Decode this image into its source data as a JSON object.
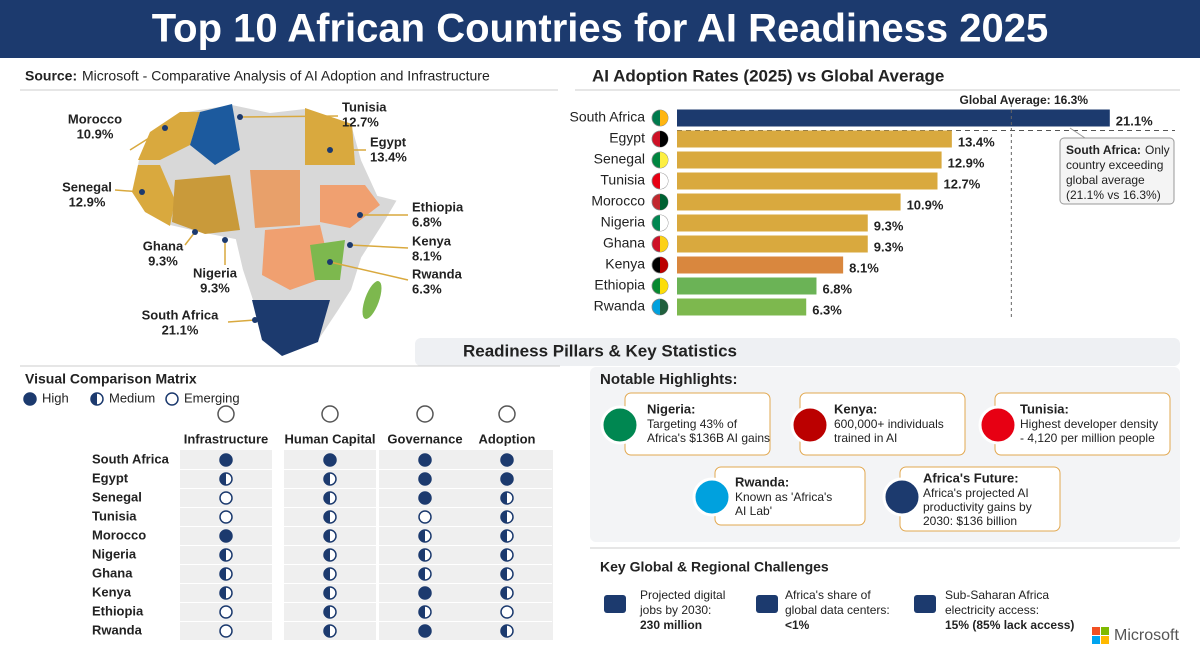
{
  "header": {
    "title": "Top 10 African Countries for AI Readiness 2025"
  },
  "source": {
    "label": "Source:",
    "text": "Microsoft - Comparative Analysis of AI Adoption and Infrastructure"
  },
  "map": {
    "labels": [
      {
        "name": "Morocco",
        "value": "10.9%"
      },
      {
        "name": "Tunisia",
        "value": "12.7%"
      },
      {
        "name": "Egypt",
        "value": "13.4%"
      },
      {
        "name": "Senegal",
        "value": "12.9%"
      },
      {
        "name": "Ethiopia",
        "value": "6.8%"
      },
      {
        "name": "Ghana",
        "value": "9.3%"
      },
      {
        "name": "Kenya",
        "value": "8.1%"
      },
      {
        "name": "Nigeria",
        "value": "9.3%"
      },
      {
        "name": "Rwanda",
        "value": "6.3%"
      },
      {
        "name": "South Africa",
        "value": "21.1%"
      }
    ]
  },
  "chart_data": {
    "type": "bar",
    "orientation": "horizontal",
    "title": "AI Adoption Rates (2025) vs Global Average",
    "categories": [
      "South Africa",
      "Egypt",
      "Senegal",
      "Tunisia",
      "Morocco",
      "Nigeria",
      "Ghana",
      "Kenya",
      "Ethiopia",
      "Rwanda"
    ],
    "values": [
      21.1,
      13.4,
      12.9,
      12.7,
      10.9,
      9.3,
      9.3,
      8.1,
      6.8,
      6.3
    ],
    "value_labels": [
      "21.1%",
      "13.4%",
      "12.9%",
      "12.7%",
      "10.9%",
      "9.3%",
      "9.3%",
      "8.1%",
      "6.8%",
      "6.3%"
    ],
    "colors": [
      "#1c3a6e",
      "#d9a93e",
      "#d9a93e",
      "#d9a93e",
      "#d9a93e",
      "#d9a93e",
      "#d9a93e",
      "#d9873e",
      "#6bb356",
      "#7db84e"
    ],
    "xlim": [
      0,
      21.5
    ],
    "reference_line": {
      "value": 16.3,
      "label": "Global Average: 16.3%"
    },
    "annotation": {
      "title": "South Africa:",
      "lines": [
        "Only",
        "country exceeding",
        "global average",
        "(21.1% vs 16.3%)"
      ]
    }
  },
  "pillars": {
    "title": "Readiness Pillars & Key Statistics"
  },
  "matrix": {
    "title": "Visual Comparison Matrix",
    "legend": [
      "High",
      "Medium",
      "Emerging"
    ],
    "columns": [
      "Infrastructure",
      "Human Capital",
      "Governance",
      "Adoption"
    ],
    "rows": [
      {
        "country": "South Africa",
        "ratings": [
          "High",
          "High",
          "High",
          "High"
        ]
      },
      {
        "country": "Egypt",
        "ratings": [
          "Medium",
          "Medium",
          "High",
          "High"
        ]
      },
      {
        "country": "Senegal",
        "ratings": [
          "Emerging",
          "Medium",
          "High",
          "Medium"
        ]
      },
      {
        "country": "Tunisia",
        "ratings": [
          "Emerging",
          "Medium",
          "Emerging",
          "Medium"
        ]
      },
      {
        "country": "Morocco",
        "ratings": [
          "High",
          "Medium",
          "Medium",
          "Medium"
        ]
      },
      {
        "country": "Nigeria",
        "ratings": [
          "Medium",
          "Medium",
          "Medium",
          "Medium"
        ]
      },
      {
        "country": "Ghana",
        "ratings": [
          "Medium",
          "Medium",
          "Medium",
          "Medium"
        ]
      },
      {
        "country": "Kenya",
        "ratings": [
          "Medium",
          "Medium",
          "High",
          "Medium"
        ]
      },
      {
        "country": "Ethiopia",
        "ratings": [
          "Emerging",
          "Medium",
          "Medium",
          "Emerging"
        ]
      },
      {
        "country": "Rwanda",
        "ratings": [
          "Emerging",
          "Medium",
          "High",
          "Medium"
        ]
      }
    ]
  },
  "highlights": {
    "title": "Notable Highlights:",
    "items": [
      {
        "title": "Nigeria:",
        "lines": [
          "Targeting 43% of",
          "Africa's $136B AI gains"
        ]
      },
      {
        "title": "Kenya:",
        "lines": [
          "600,000+ individuals",
          "trained in AI"
        ]
      },
      {
        "title": "Tunisia:",
        "lines": [
          "Highest developer density",
          "- 4,120 per million people"
        ]
      },
      {
        "title": "Rwanda:",
        "lines": [
          "Known as 'Africa's",
          "AI Lab'"
        ]
      },
      {
        "title": "Africa's Future:",
        "lines": [
          "Africa's projected AI",
          "productivity gains by",
          "2030: $136 billion"
        ]
      }
    ]
  },
  "challenges": {
    "title": "Key Global & Regional Challenges",
    "items": [
      {
        "lines": [
          "Projected digital",
          "jobs by 2030:"
        ],
        "figure": "230 million"
      },
      {
        "lines": [
          "Africa's share of",
          "global data centers:"
        ],
        "figure": "<1%"
      },
      {
        "lines": [
          "Sub-Saharan Africa",
          "electricity access:"
        ],
        "figure": "15% (85% lack access)"
      }
    ]
  },
  "footer": {
    "brand": "Microsoft"
  }
}
